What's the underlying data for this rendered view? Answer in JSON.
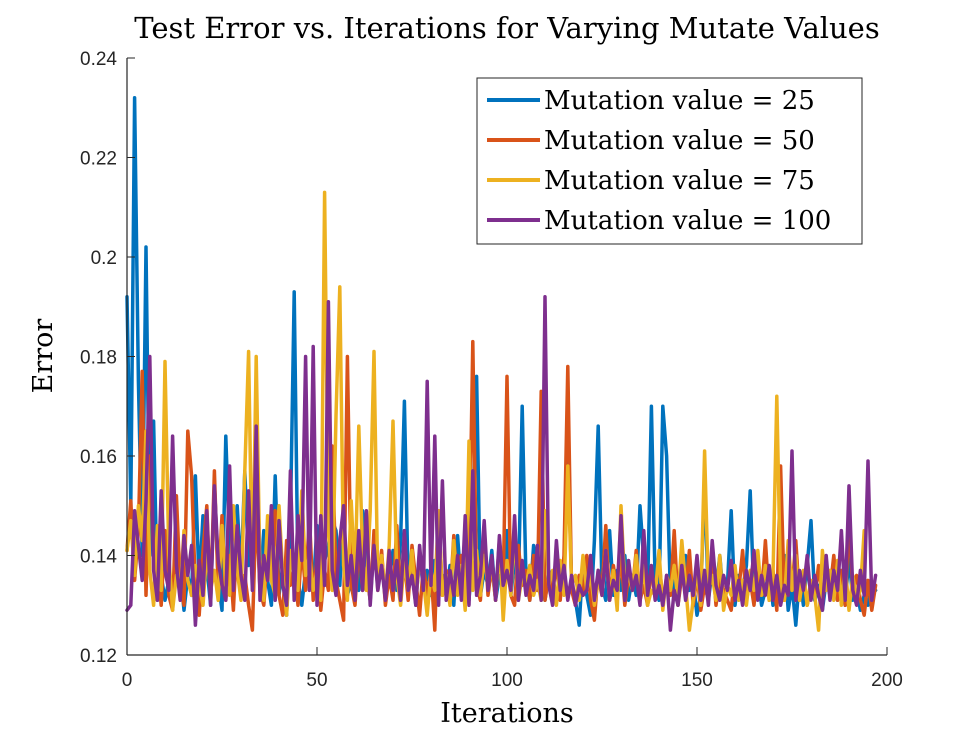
{
  "chart_data": {
    "type": "line",
    "title": "Test Error vs. Iterations for Varying Mutate Values",
    "xlabel": "Iterations",
    "ylabel": "Error",
    "xlim": [
      0,
      200
    ],
    "ylim": [
      0.12,
      0.24
    ],
    "xticks": [
      0,
      50,
      100,
      150,
      200
    ],
    "xtick_labels": [
      "0",
      "50",
      "100",
      "150",
      "200"
    ],
    "yticks": [
      0.12,
      0.14,
      0.16,
      0.18,
      0.2,
      0.22,
      0.24
    ],
    "ytick_labels": [
      "0.12",
      "0.14",
      "0.16",
      "0.18",
      "0.2",
      "0.22",
      "0.24"
    ],
    "legend_position": "top-right",
    "grid": false,
    "series": [
      {
        "name": "Mutation value = 25",
        "color": "#0072BD",
        "values": [
          0.192,
          0.15,
          0.232,
          0.175,
          0.14,
          0.202,
          0.14,
          0.167,
          0.131,
          0.136,
          0.131,
          0.135,
          0.13,
          0.143,
          0.137,
          0.129,
          0.136,
          0.132,
          0.156,
          0.134,
          0.148,
          0.138,
          0.13,
          0.155,
          0.135,
          0.129,
          0.164,
          0.141,
          0.132,
          0.15,
          0.136,
          0.157,
          0.138,
          0.141,
          0.155,
          0.133,
          0.145,
          0.135,
          0.13,
          0.156,
          0.132,
          0.138,
          0.128,
          0.147,
          0.193,
          0.135,
          0.13,
          0.137,
          0.144,
          0.133,
          0.146,
          0.132,
          0.139,
          0.142,
          0.147,
          0.145,
          0.134,
          0.149,
          0.132,
          0.135,
          0.14,
          0.133,
          0.149,
          0.137,
          0.131,
          0.142,
          0.135,
          0.138,
          0.132,
          0.136,
          0.141,
          0.133,
          0.143,
          0.171,
          0.134,
          0.138,
          0.13,
          0.141,
          0.133,
          0.137,
          0.132,
          0.139,
          0.134,
          0.136,
          0.132,
          0.138,
          0.13,
          0.144,
          0.133,
          0.138,
          0.131,
          0.142,
          0.176,
          0.132,
          0.137,
          0.134,
          0.141,
          0.131,
          0.136,
          0.133,
          0.145,
          0.132,
          0.139,
          0.134,
          0.17,
          0.135,
          0.131,
          0.142,
          0.133,
          0.138,
          0.131,
          0.137,
          0.133,
          0.14,
          0.132,
          0.136,
          0.163,
          0.134,
          0.131,
          0.126,
          0.139,
          0.132,
          0.128,
          0.143,
          0.166,
          0.134,
          0.131,
          0.145,
          0.132,
          0.137,
          0.133,
          0.14,
          0.131,
          0.136,
          0.132,
          0.15,
          0.139,
          0.133,
          0.17,
          0.134,
          0.131,
          0.17,
          0.16,
          0.132,
          0.135,
          0.13,
          0.138,
          0.14,
          0.133,
          0.135,
          0.128,
          0.132,
          0.155,
          0.131,
          0.137,
          0.133,
          0.14,
          0.131,
          0.134,
          0.149,
          0.13,
          0.136,
          0.133,
          0.138,
          0.153,
          0.131,
          0.136,
          0.13,
          0.133,
          0.137,
          0.13,
          0.134,
          0.131,
          0.14,
          0.129,
          0.134,
          0.126,
          0.136,
          0.13,
          0.138,
          0.147,
          0.131,
          0.134,
          0.129,
          0.135,
          0.132,
          0.138,
          0.131,
          0.136,
          0.13,
          0.14,
          0.131,
          0.133,
          0.129,
          0.132,
          0.13,
          0.134,
          0.133
        ]
      },
      {
        "name": "Mutation value = 50",
        "color": "#D95319",
        "values": [
          0.141,
          0.151,
          0.135,
          0.145,
          0.177,
          0.132,
          0.16,
          0.141,
          0.139,
          0.13,
          0.145,
          0.132,
          0.129,
          0.152,
          0.134,
          0.13,
          0.165,
          0.156,
          0.133,
          0.128,
          0.141,
          0.15,
          0.131,
          0.157,
          0.133,
          0.148,
          0.131,
          0.14,
          0.129,
          0.145,
          0.132,
          0.136,
          0.13,
          0.125,
          0.15,
          0.133,
          0.13,
          0.141,
          0.136,
          0.149,
          0.132,
          0.128,
          0.143,
          0.134,
          0.138,
          0.13,
          0.142,
          0.133,
          0.148,
          0.131,
          0.14,
          0.129,
          0.137,
          0.133,
          0.162,
          0.135,
          0.131,
          0.127,
          0.18,
          0.134,
          0.13,
          0.142,
          0.133,
          0.137,
          0.131,
          0.145,
          0.133,
          0.141,
          0.13,
          0.136,
          0.131,
          0.146,
          0.133,
          0.139,
          0.131,
          0.142,
          0.135,
          0.128,
          0.138,
          0.132,
          0.137,
          0.125,
          0.149,
          0.132,
          0.137,
          0.131,
          0.144,
          0.133,
          0.14,
          0.13,
          0.136,
          0.183,
          0.134,
          0.131,
          0.145,
          0.132,
          0.138,
          0.131,
          0.143,
          0.134,
          0.176,
          0.132,
          0.13,
          0.142,
          0.134,
          0.137,
          0.131,
          0.14,
          0.133,
          0.173,
          0.131,
          0.136,
          0.133,
          0.138,
          0.131,
          0.14,
          0.178,
          0.133,
          0.13,
          0.136,
          0.132,
          0.14,
          0.131,
          0.127,
          0.137,
          0.133,
          0.146,
          0.131,
          0.138,
          0.132,
          0.14,
          0.13,
          0.136,
          0.133,
          0.141,
          0.131,
          0.134,
          0.13,
          0.137,
          0.133,
          0.139,
          0.131,
          0.135,
          0.132,
          0.145,
          0.13,
          0.136,
          0.133,
          0.141,
          0.13,
          0.136,
          0.129,
          0.134,
          0.131,
          0.14,
          0.13,
          0.136,
          0.133,
          0.131,
          0.129,
          0.137,
          0.133,
          0.141,
          0.131,
          0.135,
          0.13,
          0.138,
          0.132,
          0.143,
          0.131,
          0.137,
          0.129,
          0.158,
          0.131,
          0.137,
          0.133,
          0.143,
          0.131,
          0.136,
          0.13,
          0.134,
          0.132,
          0.138,
          0.131,
          0.135,
          0.133,
          0.14,
          0.131,
          0.137,
          0.13,
          0.147,
          0.133,
          0.136,
          0.131,
          0.128,
          0.135,
          0.129,
          0.134
        ]
      },
      {
        "name": "Mutation value = 75",
        "color": "#EDB120",
        "values": [
          0.141,
          0.147,
          0.136,
          0.15,
          0.143,
          0.165,
          0.137,
          0.13,
          0.146,
          0.133,
          0.179,
          0.14,
          0.129,
          0.136,
          0.133,
          0.145,
          0.135,
          0.132,
          0.138,
          0.134,
          0.13,
          0.141,
          0.133,
          0.137,
          0.131,
          0.146,
          0.134,
          0.132,
          0.15,
          0.137,
          0.131,
          0.157,
          0.181,
          0.133,
          0.18,
          0.136,
          0.131,
          0.148,
          0.135,
          0.132,
          0.15,
          0.136,
          0.128,
          0.141,
          0.135,
          0.133,
          0.153,
          0.136,
          0.14,
          0.133,
          0.137,
          0.131,
          0.213,
          0.145,
          0.133,
          0.168,
          0.194,
          0.138,
          0.131,
          0.151,
          0.135,
          0.166,
          0.14,
          0.133,
          0.149,
          0.181,
          0.134,
          0.14,
          0.132,
          0.142,
          0.167,
          0.136,
          0.13,
          0.139,
          0.133,
          0.141,
          0.131,
          0.139,
          0.135,
          0.128,
          0.137,
          0.133,
          0.149,
          0.132,
          0.136,
          0.13,
          0.143,
          0.132,
          0.138,
          0.129,
          0.163,
          0.133,
          0.141,
          0.132,
          0.14,
          0.134,
          0.138,
          0.131,
          0.143,
          0.127,
          0.139,
          0.132,
          0.145,
          0.131,
          0.136,
          0.134,
          0.138,
          0.132,
          0.135,
          0.131,
          0.149,
          0.134,
          0.137,
          0.13,
          0.139,
          0.132,
          0.158,
          0.134,
          0.136,
          0.131,
          0.14,
          0.133,
          0.136,
          0.13,
          0.135,
          0.132,
          0.141,
          0.131,
          0.137,
          0.129,
          0.15,
          0.134,
          0.136,
          0.133,
          0.14,
          0.131,
          0.138,
          0.13,
          0.133,
          0.132,
          0.141,
          0.129,
          0.136,
          0.133,
          0.138,
          0.131,
          0.143,
          0.134,
          0.125,
          0.131,
          0.137,
          0.13,
          0.161,
          0.133,
          0.136,
          0.131,
          0.14,
          0.129,
          0.134,
          0.132,
          0.138,
          0.131,
          0.135,
          0.13,
          0.137,
          0.133,
          0.141,
          0.132,
          0.138,
          0.131,
          0.136,
          0.172,
          0.134,
          0.131,
          0.143,
          0.133,
          0.14,
          0.131,
          0.137,
          0.13,
          0.135,
          0.132,
          0.125,
          0.141,
          0.133,
          0.137,
          0.131,
          0.139,
          0.13,
          0.138,
          0.129,
          0.136,
          0.131,
          0.133,
          0.145
        ]
      },
      {
        "name": "Mutation value = 100",
        "color": "#7E2F8E",
        "values": [
          0.129,
          0.13,
          0.149,
          0.142,
          0.135,
          0.151,
          0.18,
          0.137,
          0.131,
          0.153,
          0.137,
          0.133,
          0.164,
          0.138,
          0.131,
          0.144,
          0.136,
          0.142,
          0.126,
          0.139,
          0.132,
          0.149,
          0.13,
          0.154,
          0.139,
          0.134,
          0.131,
          0.158,
          0.133,
          0.146,
          0.136,
          0.131,
          0.153,
          0.133,
          0.166,
          0.131,
          0.14,
          0.135,
          0.15,
          0.131,
          0.147,
          0.134,
          0.13,
          0.157,
          0.131,
          0.148,
          0.139,
          0.18,
          0.133,
          0.182,
          0.13,
          0.148,
          0.134,
          0.191,
          0.137,
          0.132,
          0.143,
          0.15,
          0.134,
          0.14,
          0.131,
          0.145,
          0.133,
          0.149,
          0.13,
          0.142,
          0.133,
          0.138,
          0.131,
          0.141,
          0.133,
          0.139,
          0.131,
          0.145,
          0.133,
          0.136,
          0.13,
          0.142,
          0.133,
          0.175,
          0.134,
          0.164,
          0.13,
          0.155,
          0.131,
          0.137,
          0.132,
          0.14,
          0.131,
          0.148,
          0.13,
          0.157,
          0.132,
          0.136,
          0.147,
          0.133,
          0.14,
          0.131,
          0.144,
          0.134,
          0.137,
          0.133,
          0.148,
          0.131,
          0.139,
          0.132,
          0.136,
          0.133,
          0.142,
          0.131,
          0.192,
          0.134,
          0.13,
          0.143,
          0.133,
          0.138,
          0.131,
          0.136,
          0.13,
          0.134,
          0.132,
          0.133,
          0.14,
          0.131,
          0.137,
          0.132,
          0.141,
          0.131,
          0.135,
          0.133,
          0.148,
          0.131,
          0.139,
          0.133,
          0.136,
          0.13,
          0.145,
          0.132,
          0.138,
          0.131,
          0.134,
          0.13,
          0.136,
          0.125,
          0.133,
          0.13,
          0.138,
          0.131,
          0.136,
          0.132,
          0.14,
          0.131,
          0.137,
          0.13,
          0.143,
          0.134,
          0.131,
          0.136,
          0.133,
          0.139,
          0.131,
          0.135,
          0.13,
          0.137,
          0.133,
          0.141,
          0.131,
          0.136,
          0.132,
          0.138,
          0.131,
          0.136,
          0.13,
          0.134,
          0.132,
          0.161,
          0.131,
          0.137,
          0.133,
          0.14,
          0.131,
          0.136,
          0.132,
          0.129,
          0.14,
          0.131,
          0.137,
          0.133,
          0.145,
          0.131,
          0.154,
          0.133,
          0.13,
          0.137,
          0.132,
          0.159,
          0.131,
          0.136
        ]
      }
    ]
  }
}
